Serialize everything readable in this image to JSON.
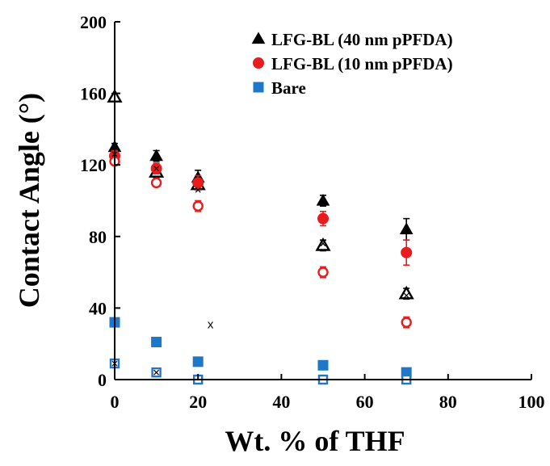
{
  "chart_data": {
    "type": "scatter",
    "title": "",
    "xlabel": "Wt. % of THF",
    "ylabel": "Contact Angle (°)",
    "xlim": [
      0,
      100
    ],
    "ylim": [
      0,
      200
    ],
    "xticks": [
      0,
      20,
      40,
      60,
      80,
      100
    ],
    "yticks": [
      0,
      40,
      80,
      120,
      160,
      200
    ],
    "grid": false,
    "legend_position": "top-right",
    "colors": {
      "black": "#000000",
      "red": "#e81c1c",
      "blue": "#1f77c9"
    },
    "legend": [
      {
        "label": "LFG-BL (40 nm pPFDA)",
        "marker": "triangle",
        "color": "#000000"
      },
      {
        "label": "LFG-BL (10 nm pPFDA)",
        "marker": "circle",
        "color": "#e81c1c"
      },
      {
        "label": "Bare",
        "marker": "square",
        "color": "#1f77c9"
      }
    ],
    "series": [
      {
        "name": "LFG-BL (40 nm pPFDA)",
        "legend_index": 0,
        "marker": "triangle",
        "filled": true,
        "color": "#000000",
        "x": [
          0,
          10,
          20,
          50,
          70
        ],
        "y": [
          130,
          125,
          113,
          100,
          84
        ],
        "err": [
          2,
          3,
          4,
          3,
          6
        ]
      },
      {
        "marker": "triangle",
        "filled": false,
        "color": "#000000",
        "x": [
          0,
          10,
          20,
          50,
          70
        ],
        "y": [
          158,
          116,
          109,
          75,
          48
        ],
        "err": [
          2,
          3,
          3,
          3,
          3
        ]
      },
      {
        "name": "LFG-BL (10 nm pPFDA)",
        "legend_index": 1,
        "marker": "circle",
        "filled": true,
        "color": "#e81c1c",
        "x": [
          0,
          10,
          20,
          50,
          70
        ],
        "y": [
          125,
          118,
          110,
          90,
          71
        ],
        "err": [
          3,
          3,
          4,
          4,
          7
        ]
      },
      {
        "marker": "circle",
        "filled": false,
        "color": "#e81c1c",
        "x": [
          0,
          10,
          20,
          50,
          70
        ],
        "y": [
          122,
          110,
          97,
          60,
          32
        ],
        "err": [
          2,
          2,
          3,
          3,
          3
        ]
      },
      {
        "name": "Bare",
        "legend_index": 2,
        "marker": "square",
        "filled": true,
        "color": "#1f77c9",
        "x": [
          0,
          10,
          20,
          50,
          70
        ],
        "y": [
          32,
          21,
          10,
          8,
          4
        ],
        "err": [
          0,
          0,
          0,
          0,
          0
        ]
      },
      {
        "marker": "square",
        "filled": false,
        "color": "#1f77c9",
        "x": [
          0,
          10,
          20,
          50,
          70
        ],
        "y": [
          9,
          4,
          0,
          0,
          0
        ],
        "err": [
          0,
          0,
          0,
          0,
          0
        ]
      }
    ],
    "x_markers": [
      {
        "x": 0,
        "y": 126
      },
      {
        "x": 10,
        "y": 118
      },
      {
        "x": 20,
        "y": 106
      },
      {
        "x": 50,
        "y": 76
      },
      {
        "x": 70,
        "y": 47
      },
      {
        "x": 0,
        "y": 9
      },
      {
        "x": 10,
        "y": 4
      }
    ],
    "annotations": [
      {
        "text": "x",
        "x": 23,
        "y": 31
      }
    ]
  }
}
